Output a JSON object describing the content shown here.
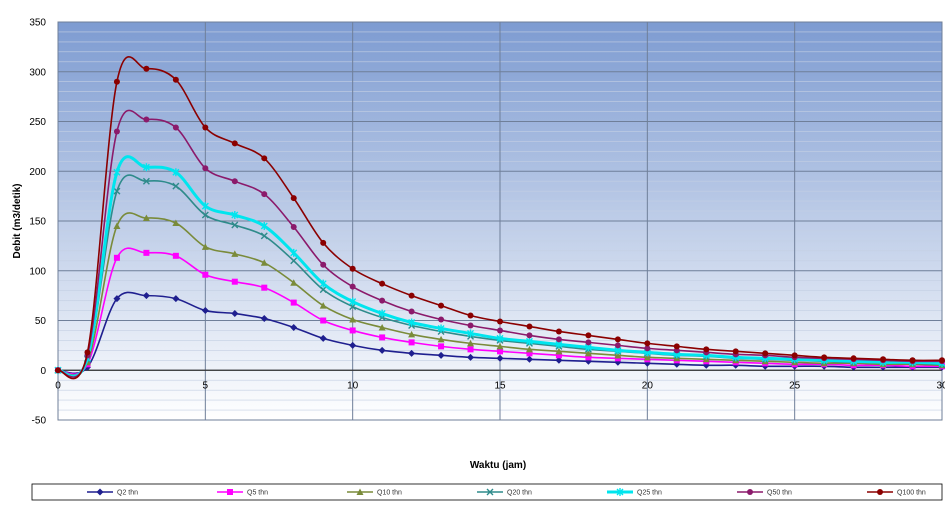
{
  "chart_data": {
    "type": "line",
    "title": "",
    "xlabel": "Waktu (jam)",
    "ylabel": "Debit (m3/detik)",
    "xlim": [
      0,
      30
    ],
    "ylim": [
      -50,
      350
    ],
    "xticks": [
      0,
      5,
      10,
      15,
      20,
      25,
      30
    ],
    "yticks": [
      -50,
      0,
      50,
      100,
      150,
      200,
      250,
      300,
      350
    ],
    "grid": true,
    "legend_position": "bottom",
    "x": [
      0,
      1,
      2,
      3,
      4,
      5,
      6,
      7,
      8,
      9,
      10,
      11,
      12,
      13,
      14,
      15,
      16,
      17,
      18,
      19,
      20,
      21,
      22,
      23,
      24,
      25,
      26,
      27,
      28,
      29,
      30
    ],
    "series": [
      {
        "name": "Q2 thn",
        "color": "#1f1f8f",
        "marker": "diamond",
        "values": [
          0,
          3,
          72,
          75,
          72,
          60,
          57,
          52,
          43,
          32,
          25,
          20,
          17,
          15,
          13,
          12,
          11,
          10,
          9,
          8,
          7,
          6,
          5,
          5,
          4,
          4,
          4,
          3,
          3,
          3,
          3
        ]
      },
      {
        "name": "Q5 thn",
        "color": "#ff00ff",
        "marker": "square",
        "values": [
          0,
          6,
          113,
          118,
          115,
          96,
          89,
          83,
          68,
          50,
          40,
          33,
          28,
          24,
          21,
          19,
          17,
          15,
          13,
          12,
          11,
          10,
          9,
          8,
          7,
          6,
          6,
          5,
          5,
          4,
          4
        ]
      },
      {
        "name": "Q10 thn",
        "color": "#7a8b3a",
        "marker": "triangle",
        "values": [
          0,
          8,
          145,
          153,
          148,
          124,
          117,
          108,
          88,
          65,
          51,
          43,
          36,
          31,
          27,
          24,
          21,
          19,
          17,
          15,
          13,
          12,
          11,
          10,
          9,
          8,
          7,
          7,
          6,
          6,
          5
        ]
      },
      {
        "name": "Q20 thn",
        "color": "#2e8b8b",
        "marker": "x",
        "values": [
          0,
          11,
          180,
          190,
          185,
          156,
          146,
          135,
          110,
          81,
          64,
          53,
          45,
          39,
          34,
          30,
          27,
          24,
          21,
          19,
          17,
          15,
          14,
          12,
          11,
          10,
          9,
          8,
          8,
          7,
          6
        ]
      },
      {
        "name": "Q25 thn",
        "color": "#00e5ee",
        "marker": "star",
        "values": [
          0,
          12,
          199,
          204,
          199,
          165,
          156,
          145,
          118,
          87,
          69,
          57,
          48,
          42,
          37,
          32,
          29,
          26,
          23,
          20,
          18,
          16,
          15,
          13,
          12,
          11,
          10,
          9,
          8,
          8,
          7
        ]
      },
      {
        "name": "Q50 thn",
        "color": "#8b1a6b",
        "marker": "circle",
        "values": [
          0,
          15,
          240,
          252,
          244,
          203,
          190,
          177,
          144,
          106,
          84,
          70,
          59,
          51,
          45,
          40,
          35,
          31,
          28,
          25,
          22,
          20,
          18,
          16,
          15,
          13,
          12,
          11,
          10,
          9,
          9
        ]
      },
      {
        "name": "Q100 thn",
        "color": "#8b0000",
        "marker": "circle",
        "values": [
          0,
          18,
          290,
          303,
          292,
          244,
          228,
          213,
          173,
          128,
          102,
          87,
          75,
          65,
          55,
          49,
          44,
          39,
          35,
          31,
          27,
          24,
          21,
          19,
          17,
          15,
          13,
          12,
          11,
          10,
          10
        ]
      }
    ]
  }
}
